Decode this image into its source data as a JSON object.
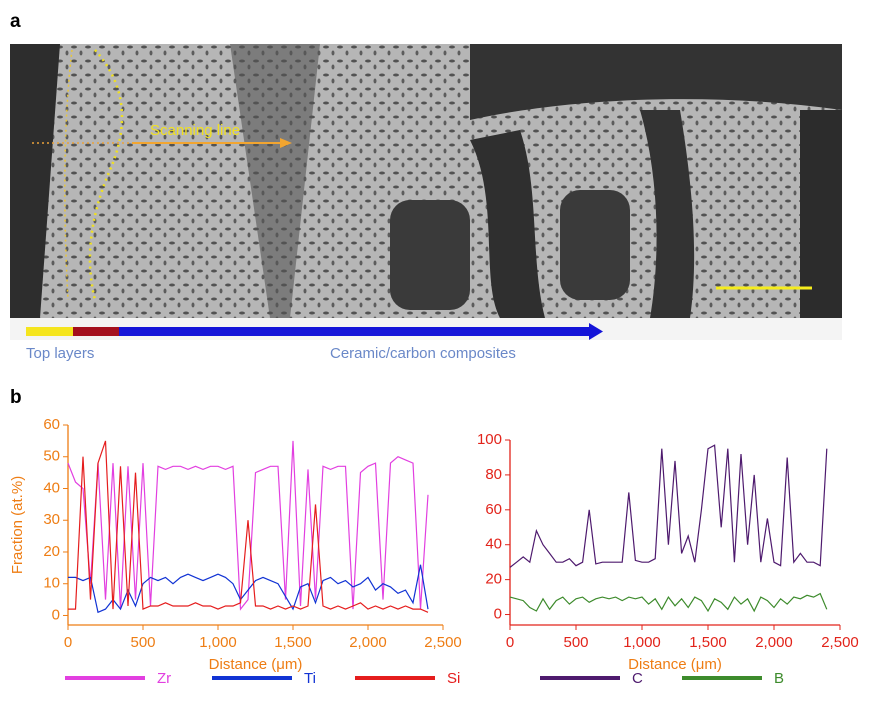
{
  "panel_a": {
    "label": "a",
    "scan_label": "Scanning line",
    "layer_top": "Top layers",
    "layer_ceramic": "Ceramic/carbon composites"
  },
  "panel_b": {
    "label": "b"
  },
  "chart_data": [
    {
      "type": "line",
      "xlabel": "Distance (μm)",
      "ylabel": "Fraction (at.%)",
      "axis_color": "#ee7d14",
      "tick_color": "#ee7d14",
      "xlim": [
        0,
        2500
      ],
      "xticks": [
        0,
        500,
        {
          "value": 1000,
          "label": "1,000"
        },
        {
          "value": 1500,
          "label": "1,500"
        },
        {
          "value": 2000,
          "label": "2,000"
        },
        {
          "value": 2500,
          "label": "2,500"
        }
      ],
      "ylim": [
        -3,
        60
      ],
      "yticks": [
        0,
        10,
        20,
        30,
        40,
        50,
        60
      ],
      "x": [
        0,
        50,
        100,
        150,
        200,
        250,
        300,
        350,
        400,
        450,
        500,
        550,
        600,
        650,
        700,
        750,
        800,
        850,
        900,
        950,
        1000,
        1050,
        1100,
        1150,
        1200,
        1250,
        1300,
        1350,
        1400,
        1450,
        1500,
        1550,
        1600,
        1650,
        1700,
        1750,
        1800,
        1850,
        1900,
        1950,
        2000,
        2050,
        2100,
        2150,
        2200,
        2250,
        2300,
        2350,
        2400
      ],
      "series": [
        {
          "name": "Zr",
          "color": "#e23fe0",
          "values": [
            48,
            42,
            40,
            10,
            48,
            5,
            48,
            2,
            47,
            5,
            48,
            3,
            47,
            46,
            47,
            47,
            46,
            47,
            46,
            47,
            47,
            46,
            47,
            2,
            5,
            45,
            46,
            47,
            47,
            5,
            55,
            3,
            46,
            5,
            47,
            46,
            47,
            47,
            2,
            45,
            47,
            48,
            5,
            48,
            50,
            49,
            48,
            2,
            38
          ]
        },
        {
          "name": "Ti",
          "color": "#1133d4",
          "values": [
            12,
            12,
            11,
            12,
            1,
            2,
            5,
            2,
            8,
            3,
            10,
            12,
            11,
            12,
            10,
            12,
            13,
            12,
            11,
            12,
            13,
            12,
            10,
            5,
            8,
            11,
            12,
            11,
            10,
            6,
            2,
            9,
            10,
            4,
            11,
            12,
            10,
            11,
            9,
            10,
            12,
            8,
            10,
            9,
            7,
            8,
            4,
            16,
            2
          ]
        },
        {
          "name": "Si",
          "color": "#e51d1d",
          "values": [
            2,
            2,
            50,
            5,
            48,
            55,
            2,
            47,
            3,
            45,
            2,
            3,
            3,
            4,
            3,
            3,
            3,
            4,
            3,
            3,
            2,
            3,
            3,
            4,
            30,
            3,
            3,
            2,
            3,
            2,
            3,
            2,
            3,
            35,
            3,
            2,
            3,
            2,
            3,
            4,
            2,
            3,
            2,
            3,
            2,
            3,
            2,
            2,
            1
          ]
        }
      ]
    },
    {
      "type": "line",
      "xlabel": "Distance (μm)",
      "axis_color": "#e2231a",
      "tick_color": "#e2231a",
      "xlim": [
        0,
        2500
      ],
      "xticks": [
        0,
        500,
        {
          "value": 1000,
          "label": "1,000"
        },
        {
          "value": 1500,
          "label": "1,500"
        },
        {
          "value": 2000,
          "label": "2,000"
        },
        {
          "value": 2500,
          "label": "2,500"
        }
      ],
      "ylim": [
        -6,
        100
      ],
      "yticks": [
        0,
        20,
        40,
        60,
        80,
        100
      ],
      "x": [
        0,
        50,
        100,
        150,
        200,
        250,
        300,
        350,
        400,
        450,
        500,
        550,
        600,
        650,
        700,
        750,
        800,
        850,
        900,
        950,
        1000,
        1050,
        1100,
        1150,
        1200,
        1250,
        1300,
        1350,
        1400,
        1450,
        1500,
        1550,
        1600,
        1650,
        1700,
        1750,
        1800,
        1850,
        1900,
        1950,
        2000,
        2050,
        2100,
        2150,
        2200,
        2250,
        2300,
        2350,
        2400
      ],
      "series": [
        {
          "name": "C",
          "color": "#4e1a6e",
          "values": [
            27,
            30,
            33,
            30,
            48,
            40,
            35,
            30,
            30,
            32,
            28,
            30,
            60,
            29,
            30,
            30,
            30,
            30,
            70,
            31,
            30,
            30,
            32,
            95,
            40,
            88,
            35,
            45,
            30,
            60,
            95,
            97,
            50,
            95,
            30,
            92,
            40,
            80,
            30,
            55,
            30,
            28,
            90,
            30,
            35,
            30,
            30,
            28,
            95
          ]
        },
        {
          "name": "B",
          "color": "#3d8b2c",
          "values": [
            10,
            9,
            8,
            4,
            2,
            9,
            3,
            8,
            10,
            6,
            9,
            10,
            7,
            9,
            10,
            9,
            10,
            8,
            10,
            9,
            10,
            6,
            9,
            3,
            10,
            5,
            9,
            4,
            10,
            8,
            2,
            9,
            7,
            3,
            10,
            6,
            9,
            2,
            10,
            8,
            4,
            9,
            6,
            10,
            9,
            11,
            10,
            12,
            3
          ]
        }
      ]
    }
  ]
}
